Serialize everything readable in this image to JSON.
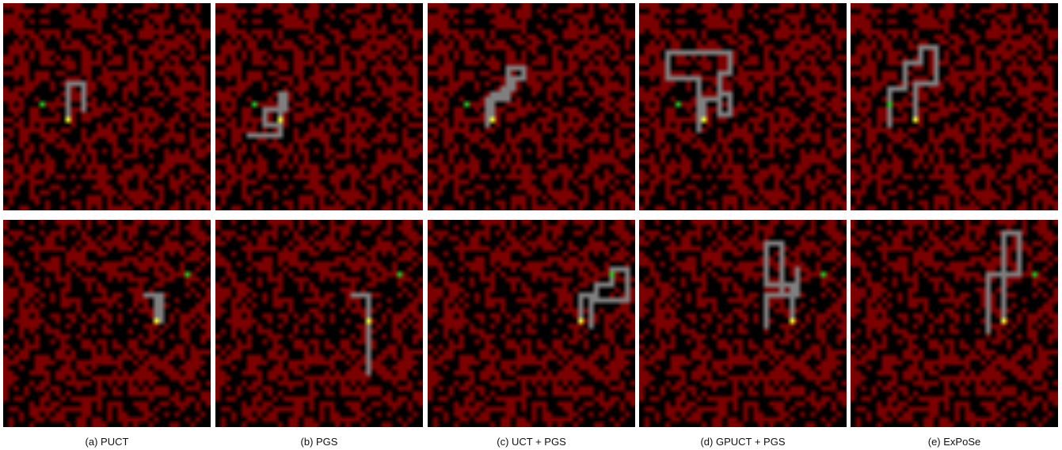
{
  "figure": {
    "captions": [
      "(a) PUCT",
      "(b) PGS",
      "(c) UCT + PGS",
      "(d) GPUCT + PGS",
      "(e) ExPoSe"
    ]
  },
  "legend_colors": {
    "free_cell": "#7b0000",
    "wall_cell": "#000000",
    "explored_cell": "#7f7f7f",
    "start_cell": "#ffff33",
    "goal_cell": "#22cc22"
  },
  "grid": {
    "size": 40,
    "density": 0.5
  },
  "rows": [
    {
      "start": [
        12,
        22
      ],
      "goal": [
        7,
        19
      ],
      "paths": [
        "UUUUUUURRRDDDDD",
        "UUUUURDDDLLLLDDDRRRDDLLLLLL",
        "UUUUURRURRUURRUULLLDDDDDDLLLLDDDDD",
        "UUUURRRDDDRRUUUULLUUUURRUUUULLLLLLLLLLLLDDDDDRRRRRRDDDDDDDDDD",
        "UUUUUUURRRRUUUUUUULLLDDDLLLDDDDDLLLDDDDDDD"
      ]
    },
    {
      "start": [
        29,
        19
      ],
      "goal": [
        35,
        10
      ],
      "paths": [
        "UUUUULLRRRDDDDD",
        "UUUUULLLRRRDDDDDDDDDDDDDDD",
        "UUUUURRRUURRRUUURRRDDDDDDLLLLLLLDDDDD",
        "UUUUUUULLLLLUUUUUUUURRRDDDDDDDDDDRRRUUUUUDDDDDLLLLLLDDDDDD",
        "UUUUUUUUUUUUUUUUURRRDDDDDDDDLLLLLLDDDDDDDDDDD"
      ]
    }
  ]
}
